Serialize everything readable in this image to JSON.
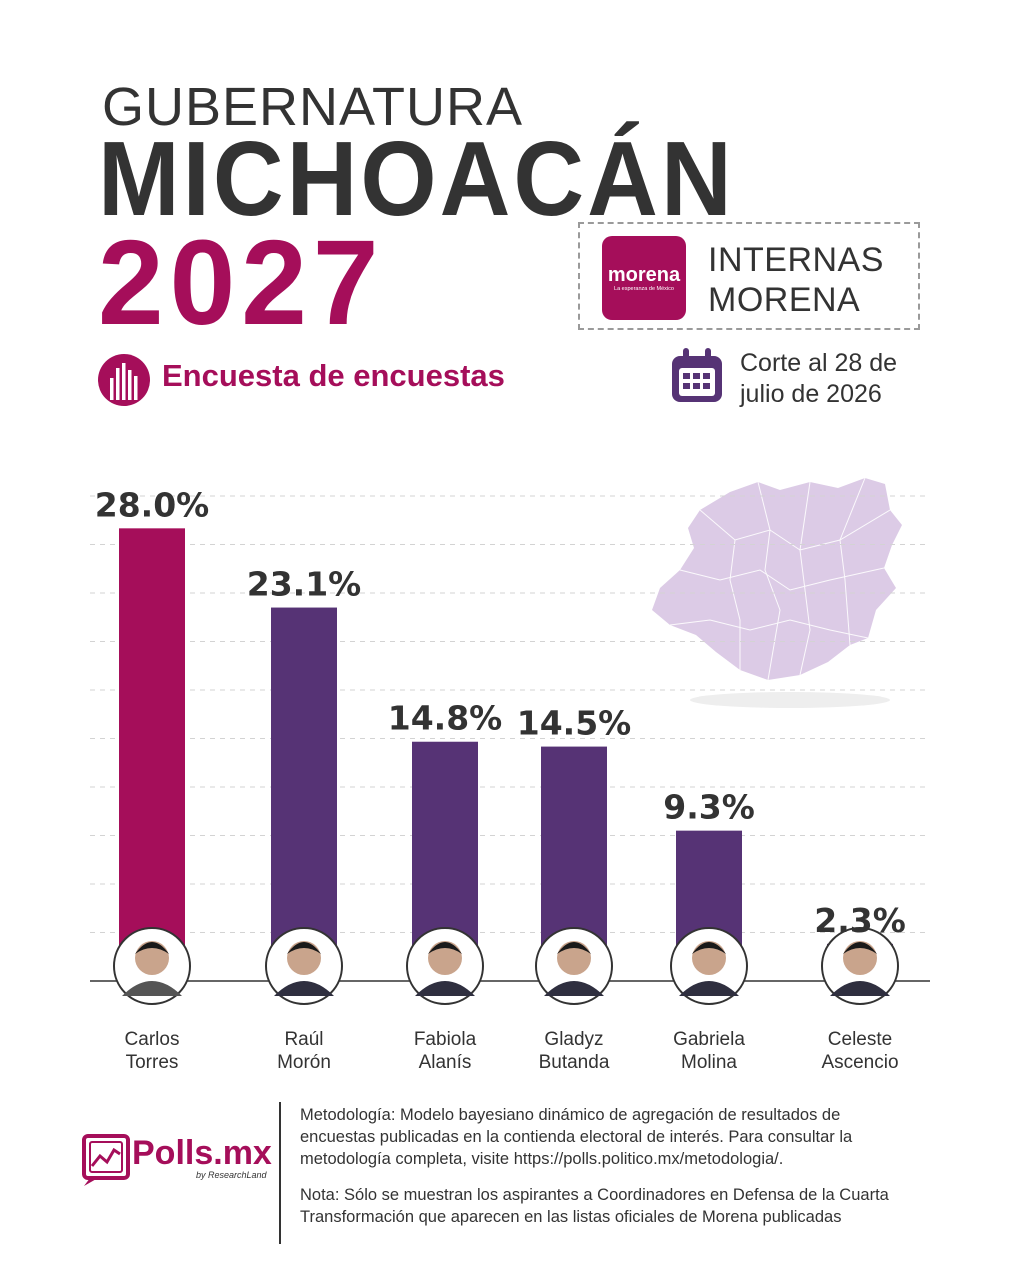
{
  "header": {
    "subtitle": "GUBERNATURA",
    "title": "MICHOACÁN",
    "year": "2027"
  },
  "party_badge": {
    "logo_name": "morena",
    "logo_tagline": "La esperanza de México",
    "line1": "INTERNAS",
    "line2": "MORENA"
  },
  "survey": {
    "label": "Encuesta de encuestas",
    "icon": "bar-chart-icon"
  },
  "cutoff": {
    "line1": "Corte al 28 de",
    "line2": "julio de 2026",
    "icon": "calendar-icon"
  },
  "colors": {
    "magenta": "#a50e5a",
    "purple": "#563375",
    "text": "#333333",
    "map": "#dccbe6",
    "grid": "#d3d3d3"
  },
  "chart_data": {
    "type": "bar",
    "categories": [
      "Carlos Torres",
      "Raúl Morón",
      "Fabiola Alanís",
      "Gladyz Butanda",
      "Gabriela Molina",
      "Celeste Ascencio"
    ],
    "name_lines": [
      [
        "Carlos",
        "Torres"
      ],
      [
        "Raúl",
        "Morón"
      ],
      [
        "Fabiola",
        "Alanís"
      ],
      [
        "Gladyz",
        "Butanda"
      ],
      [
        "Gabriela",
        "Molina"
      ],
      [
        "Celeste",
        "Ascencio"
      ]
    ],
    "values": [
      28.0,
      23.1,
      14.8,
      14.5,
      9.3,
      2.3
    ],
    "labels": [
      "28.0%",
      "23.1%",
      "14.8%",
      "14.5%",
      "9.3%",
      "2.3%"
    ],
    "highlight_index": 0,
    "ylim": [
      0,
      30
    ],
    "grid": true,
    "title": "",
    "xlabel": "",
    "ylabel": ""
  },
  "footer": {
    "brand": "Polls.mx",
    "brand_sub": "by ResearchLand",
    "methodology": "Metodología: Modelo bayesiano dinámico de agregación de resultados de encuestas publicadas en la contienda electoral de interés. Para consultar la metodología completa, visite https://polls.politico.mx/metodologia/.",
    "note": "Nota: Sólo se muestran los aspirantes a Coordinadores en Defensa de la Cuarta Transformación que aparecen en las listas oficiales de Morena publicadas"
  }
}
